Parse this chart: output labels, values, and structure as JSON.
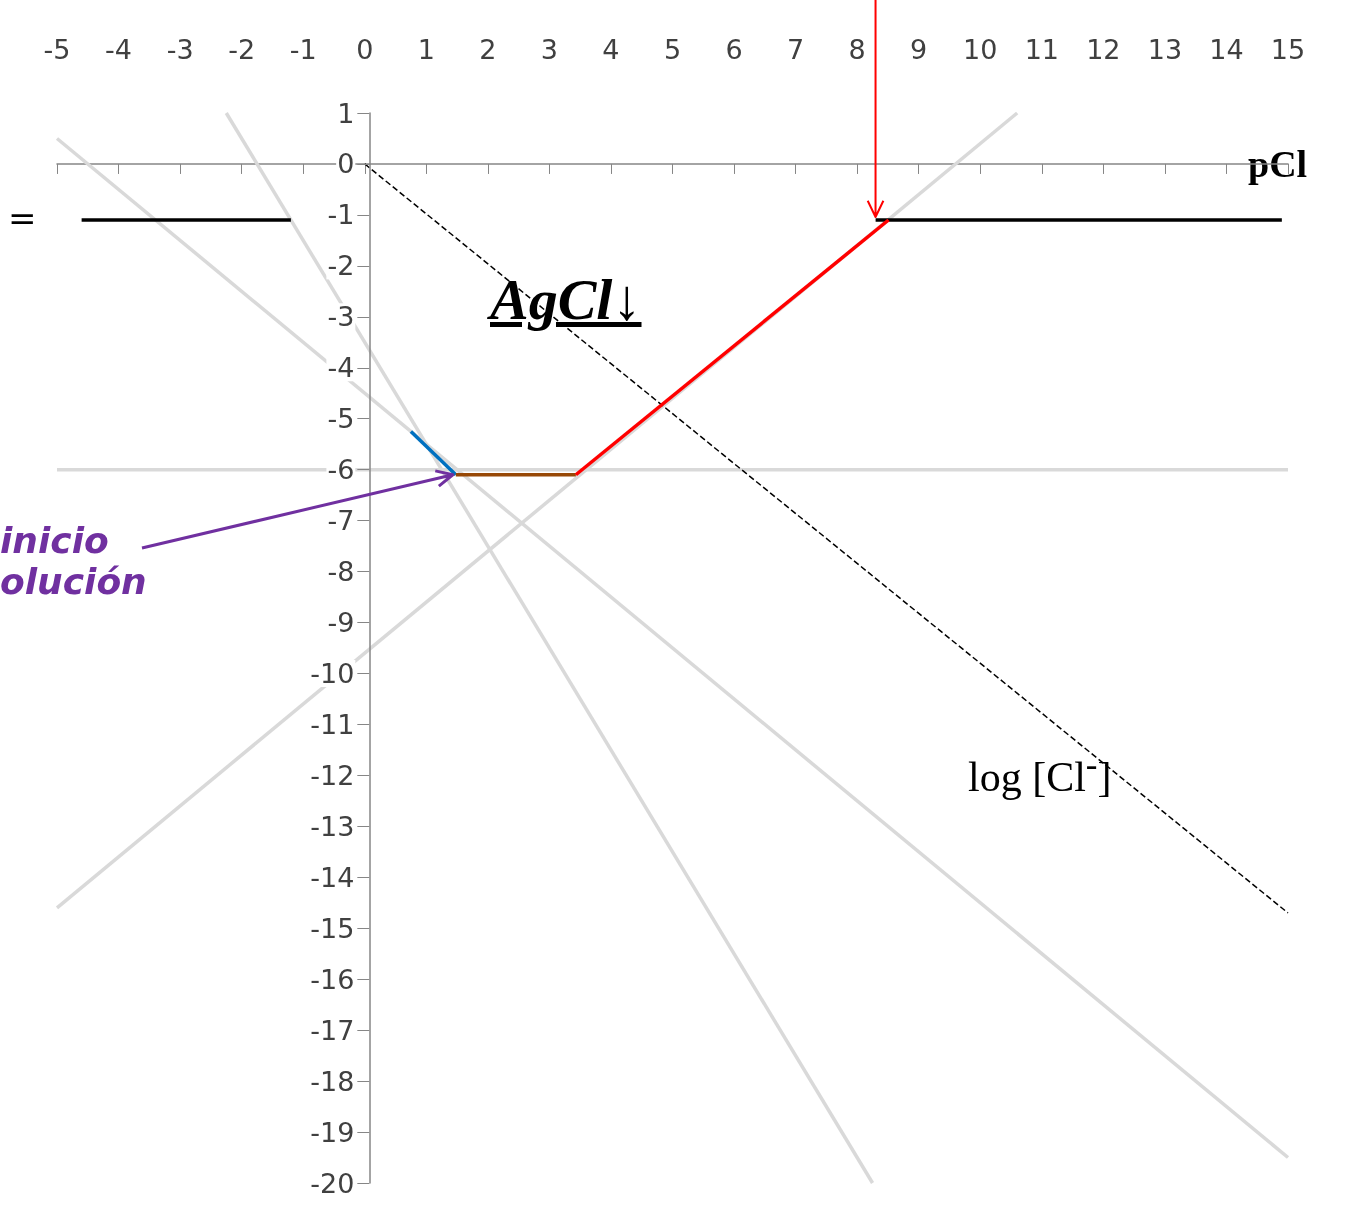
{
  "chart_data": {
    "type": "line",
    "xlabel": "pCl",
    "xlim": [
      -5,
      15
    ],
    "xticks": [
      -5,
      -4,
      -3,
      -2,
      -1,
      0,
      1,
      2,
      3,
      4,
      5,
      6,
      7,
      8,
      9,
      10,
      11,
      12,
      13,
      14,
      15
    ],
    "ylim": [
      -20,
      1
    ],
    "yticks": [
      -20,
      -19,
      -18,
      -17,
      -16,
      -15,
      -14,
      -13,
      -12,
      -11,
      -10,
      -9,
      -8,
      -7,
      -6,
      -5,
      -4,
      -3,
      -2,
      -1,
      0,
      1
    ],
    "marker": "none",
    "series": [
      {
        "color": "#d9d9d9",
        "x": [
          -5,
          15
        ],
        "values": [
          0.5,
          -19.5
        ]
      },
      {
        "color": "#d9d9d9",
        "x": [
          -2.25,
          8.25
        ],
        "values": [
          1,
          -20
        ]
      },
      {
        "color": "#d9d9d9",
        "x": [
          -5,
          10.6
        ],
        "values": [
          -14.6,
          1
        ]
      },
      {
        "color": "#d9d9d9",
        "x": [
          -5,
          15
        ],
        "values": [
          -6,
          -6
        ]
      },
      {
        "color": "#000000",
        "x": [
          0,
          15
        ],
        "values": [
          0,
          -14.7
        ],
        "line_style": "dashed"
      },
      {
        "color": "#000000",
        "x": [
          -4.6,
          -1.2
        ],
        "values": [
          -1.1,
          -1.1
        ]
      },
      {
        "color": "#000000",
        "x": [
          8.3,
          14.9
        ],
        "values": [
          -1.1,
          -1.1
        ]
      },
      {
        "color": "#0070c0",
        "x": [
          0.75,
          1.48
        ],
        "values": [
          -5.25,
          -6.1
        ]
      },
      {
        "color": "#974806",
        "x": [
          1.48,
          3.43
        ],
        "values": [
          -6.1,
          -6.1
        ]
      },
      {
        "color": "#ff0000",
        "x": [
          3.43,
          8.51
        ],
        "values": [
          -6.1,
          -1.1
        ]
      }
    ],
    "annotations": [
      "AgCl↓",
      "log [Cl$^{-}$]",
      "=",
      {
        "text": "inicio\nolución",
        "x": 1.48,
        "y": -6.1
      }
    ]
  }
}
